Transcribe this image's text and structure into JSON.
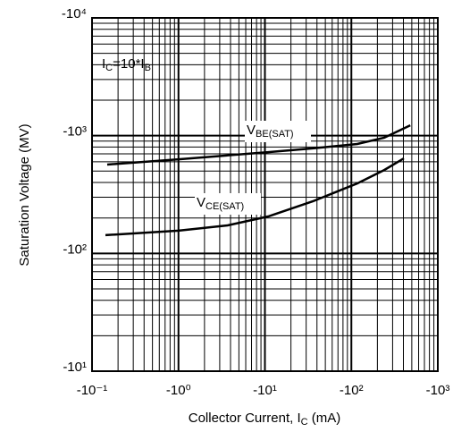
{
  "chart_data": {
    "type": "line",
    "x_label": {
      "parts": [
        "Collector Current, I",
        "C",
        " (mA)"
      ]
    },
    "y_label": "Saturation Voltage (MV)",
    "annotations": [
      {
        "parts": [
          "I",
          "C",
          "=10*I",
          "B"
        ]
      },
      {
        "parts": [
          "V",
          "BE(SAT)"
        ]
      },
      {
        "parts": [
          "V",
          "CE(SAT)"
        ]
      }
    ],
    "xscale": "log",
    "yscale": "log",
    "grid": true,
    "xlim": [
      -0.1,
      -1000
    ],
    "ylim": [
      -10,
      -10000
    ],
    "xticks": [
      {
        "value": -0.1,
        "label": "-10⁻¹"
      },
      {
        "value": -1,
        "label": "-10⁰"
      },
      {
        "value": -10,
        "label": "-10¹"
      },
      {
        "value": -100,
        "label": "-10²"
      },
      {
        "value": -1000,
        "label": "-10³"
      }
    ],
    "yticks": [
      {
        "value": -10,
        "label": "-10¹"
      },
      {
        "value": -100,
        "label": "-10²"
      },
      {
        "value": -1000,
        "label": "-10³"
      },
      {
        "value": -10000,
        "label": "-10⁴"
      }
    ],
    "series": [
      {
        "color": "#000000",
        "x": [
          -0.15,
          -1.0,
          -10.9,
          -35.7,
          -117,
          -240,
          -480
        ],
        "values": [
          -568,
          -630,
          -725,
          -780,
          -850,
          -960,
          -1225
        ]
      },
      {
        "color": "#000000",
        "x": [
          -0.143,
          -1.0,
          -3.7,
          -10.9,
          -35.7,
          -117,
          -240,
          -405
        ],
        "values": [
          -143,
          -156,
          -173,
          -206,
          -277,
          -393,
          -511,
          -641
        ]
      }
    ]
  }
}
